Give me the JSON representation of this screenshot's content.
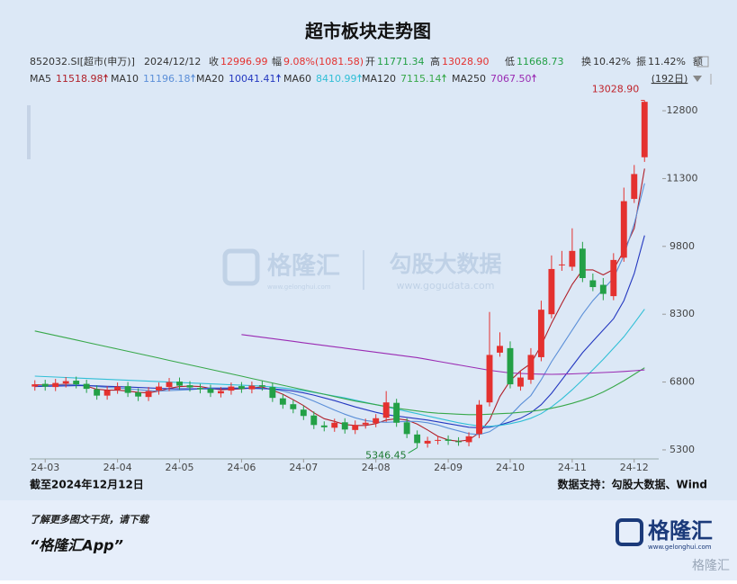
{
  "title": "超市板块走势图",
  "quote": {
    "code": "852032.SI[超市(申万)]",
    "date": "2024/12/12",
    "close_label": "收",
    "change_label": "幅",
    "change": "9.08%(1081.58)",
    "open_label": "开",
    "high_label": "高",
    "high": "13028.90",
    "low_label": "低",
    "turnover_label": "换",
    "turnover": "10.42%",
    "amplitude_label": "振",
    "amplitude": "11.42%",
    "amount_label": "额",
    "period": "(192日)"
  },
  "chart_data": {
    "type": "candlestick",
    "categories": [
      null,
      "24-03",
      null,
      null,
      null,
      null,
      null,
      null,
      "24-04",
      null,
      null,
      null,
      null,
      null,
      "24-05",
      null,
      null,
      null,
      null,
      null,
      "24-06",
      null,
      null,
      null,
      null,
      null,
      "24-07",
      null,
      null,
      null,
      null,
      null,
      null,
      "24-08",
      null,
      null,
      null,
      null,
      null,
      null,
      "24-09",
      null,
      null,
      null,
      null,
      null,
      "24-10",
      null,
      null,
      null,
      null,
      null,
      "24-11",
      null,
      null,
      null,
      null,
      null,
      "24-12",
      null
    ],
    "open": [
      6700,
      6760,
      6690,
      6770,
      6830,
      6760,
      6640,
      6500,
      6630,
      6710,
      6570,
      6470,
      6610,
      6690,
      6810,
      6730,
      6670,
      6650,
      6550,
      6610,
      6710,
      6640,
      6730,
      6690,
      6440,
      6310,
      6190,
      6060,
      5840,
      5790,
      5910,
      5740,
      5860,
      5890,
      6010,
      6340,
      5910,
      5640,
      5440,
      5510,
      5530,
      5490,
      5470,
      5650,
      6350,
      7450,
      7550,
      6700,
      6850,
      7350,
      8300,
      9400,
      9350,
      9750,
      9050,
      8950,
      8700,
      9550,
      10850,
      11771.34
    ],
    "high": [
      6840,
      6850,
      6870,
      6910,
      6920,
      6850,
      6730,
      6710,
      6790,
      6800,
      6660,
      6690,
      6790,
      6890,
      6900,
      6820,
      6760,
      6740,
      6690,
      6790,
      6800,
      6810,
      6820,
      6780,
      6530,
      6400,
      6280,
      6150,
      5930,
      5990,
      6000,
      5950,
      5990,
      6090,
      6600,
      6430,
      6000,
      5730,
      5590,
      5610,
      5620,
      5580,
      5690,
      6400,
      8350,
      7900,
      7700,
      7050,
      7550,
      8600,
      9600,
      9700,
      10200,
      9900,
      9200,
      9100,
      9650,
      11100,
      11600,
      13028.9
    ],
    "low": [
      6610,
      6610,
      6600,
      6680,
      6660,
      6560,
      6410,
      6410,
      6540,
      6470,
      6380,
      6380,
      6520,
      6600,
      6630,
      6590,
      6550,
      6470,
      6460,
      6520,
      6560,
      6550,
      6610,
      6360,
      6210,
      6110,
      5960,
      5760,
      5710,
      5700,
      5660,
      5650,
      5770,
      5800,
      5920,
      5810,
      5560,
      5346.45,
      5350,
      5420,
      5410,
      5390,
      5380,
      5560,
      6260,
      7360,
      6660,
      6610,
      6760,
      7260,
      8210,
      9260,
      9260,
      9010,
      8810,
      8610,
      8610,
      9460,
      10760,
      11668.73
    ],
    "close": [
      6750,
      6700,
      6780,
      6820,
      6750,
      6650,
      6500,
      6620,
      6700,
      6560,
      6480,
      6600,
      6700,
      6800,
      6720,
      6680,
      6640,
      6560,
      6600,
      6700,
      6650,
      6720,
      6700,
      6450,
      6300,
      6200,
      6050,
      5850,
      5800,
      5900,
      5750,
      5850,
      5900,
      6000,
      6350,
      5900,
      5650,
      5450,
      5500,
      5520,
      5500,
      5480,
      5600,
      6300,
      7400,
      7600,
      6750,
      6900,
      7400,
      8400,
      9300,
      9400,
      9700,
      9100,
      8900,
      8750,
      9500,
      10800,
      11400,
      12996.99
    ],
    "up_color": "#e4312f",
    "down_color": "#23a046",
    "series": [
      {
        "name": "MA5",
        "color": "#b0202a",
        "legend_value": "11518.98",
        "values": [
          6740,
          6730,
          6740,
          6750,
          6740,
          6710,
          6640,
          6620,
          6620,
          6600,
          6570,
          6560,
          6600,
          6660,
          6700,
          6710,
          6700,
          6660,
          6630,
          6640,
          6650,
          6670,
          6690,
          6620,
          6530,
          6410,
          6280,
          6120,
          5990,
          5930,
          5860,
          5840,
          5840,
          5880,
          5960,
          5990,
          5960,
          5870,
          5740,
          5600,
          5520,
          5490,
          5520,
          5680,
          5960,
          6480,
          6830,
          7050,
          7210,
          7610,
          8100,
          8540,
          8960,
          9280,
          9280,
          9170,
          9290,
          9700,
          10200,
          11518.98
        ]
      },
      {
        "name": "MA10",
        "color": "#5b8fd8",
        "legend_value": "11196.18",
        "values": [
          6720,
          6720,
          6730,
          6735,
          6740,
          6730,
          6700,
          6680,
          6670,
          6650,
          6630,
          6610,
          6600,
          6610,
          6620,
          6630,
          6650,
          6670,
          6670,
          6670,
          6670,
          6670,
          6660,
          6640,
          6600,
          6540,
          6470,
          6380,
          6280,
          6180,
          6090,
          6010,
          5950,
          5920,
          5910,
          5920,
          5930,
          5930,
          5900,
          5850,
          5780,
          5720,
          5660,
          5640,
          5700,
          5850,
          6060,
          6300,
          6500,
          6850,
          7250,
          7600,
          7950,
          8300,
          8600,
          8850,
          9100,
          9600,
          10300,
          11196.18
        ]
      },
      {
        "name": "MA20",
        "color": "#2438c0",
        "legend_value": "10041.41",
        "values": [
          6700,
          6705,
          6710,
          6715,
          6720,
          6720,
          6715,
          6705,
          6700,
          6690,
          6680,
          6670,
          6660,
          6650,
          6650,
          6650,
          6650,
          6650,
          6650,
          6655,
          6660,
          6660,
          6655,
          6650,
          6630,
          6600,
          6560,
          6510,
          6450,
          6390,
          6320,
          6250,
          6190,
          6130,
          6080,
          6050,
          6020,
          5990,
          5960,
          5920,
          5880,
          5840,
          5800,
          5790,
          5800,
          5850,
          5920,
          6000,
          6120,
          6300,
          6550,
          6850,
          7150,
          7450,
          7700,
          7950,
          8200,
          8600,
          9200,
          10041.41
        ]
      },
      {
        "name": "MA60",
        "color": "#31bfd6",
        "legend_value": "8410.99",
        "values": [
          6930,
          6920,
          6910,
          6900,
          6890,
          6880,
          6870,
          6860,
          6850,
          6840,
          6830,
          6820,
          6810,
          6800,
          6790,
          6780,
          6770,
          6760,
          6750,
          6740,
          6730,
          6720,
          6710,
          6690,
          6670,
          6640,
          6610,
          6570,
          6530,
          6490,
          6450,
          6400,
          6350,
          6300,
          6250,
          6200,
          6150,
          6100,
          6050,
          6000,
          5950,
          5900,
          5860,
          5830,
          5820,
          5840,
          5880,
          5930,
          6000,
          6100,
          6250,
          6430,
          6630,
          6850,
          7070,
          7300,
          7550,
          7800,
          8100,
          8410.99
        ]
      },
      {
        "name": "MA120",
        "color": "#38a84a",
        "legend_value": "7115.14",
        "values": [
          7930,
          7880,
          7830,
          7780,
          7730,
          7680,
          7630,
          7580,
          7530,
          7480,
          7430,
          7380,
          7330,
          7280,
          7230,
          7180,
          7130,
          7080,
          7030,
          6980,
          6930,
          6880,
          6830,
          6780,
          6730,
          6680,
          6630,
          6580,
          6530,
          6480,
          6430,
          6380,
          6340,
          6300,
          6260,
          6220,
          6190,
          6160,
          6130,
          6110,
          6100,
          6090,
          6080,
          6080,
          6090,
          6100,
          6110,
          6130,
          6150,
          6180,
          6220,
          6270,
          6330,
          6400,
          6480,
          6580,
          6700,
          6830,
          6970,
          7115.14
        ]
      },
      {
        "name": "MA250",
        "color": "#9a2bb3",
        "legend_value": "7067.50",
        "values": [
          null,
          null,
          null,
          null,
          null,
          null,
          null,
          null,
          null,
          null,
          null,
          null,
          null,
          null,
          null,
          null,
          null,
          null,
          null,
          null,
          7850,
          7820,
          7790,
          7760,
          7730,
          7700,
          7670,
          7640,
          7610,
          7580,
          7550,
          7520,
          7490,
          7460,
          7430,
          7400,
          7370,
          7340,
          7300,
          7260,
          7220,
          7180,
          7140,
          7100,
          7060,
          7030,
          7000,
          6990,
          6980,
          6975,
          6970,
          6975,
          6980,
          6990,
          7000,
          7010,
          7020,
          7035,
          7050,
          7067.5
        ]
      }
    ],
    "ylim": [
      5100,
      13060
    ],
    "yticks": [
      5300,
      6800,
      8300,
      9800,
      11300,
      12800
    ],
    "grid": false
  },
  "footer": {
    "as_of": "截至2024年12月12日",
    "source": "数据支持：勾股大数据、Wind",
    "promo": "了解更多图文干货，请下载",
    "app": "“格隆汇App”",
    "brand": "格隆汇",
    "brand_url": "www.gelonghui.com"
  },
  "watermark": {
    "brand": "格隆汇",
    "brand_url": "www.gelonghui.com",
    "data_brand": "勾股大数据",
    "data_url": "www.gogudata.com"
  }
}
